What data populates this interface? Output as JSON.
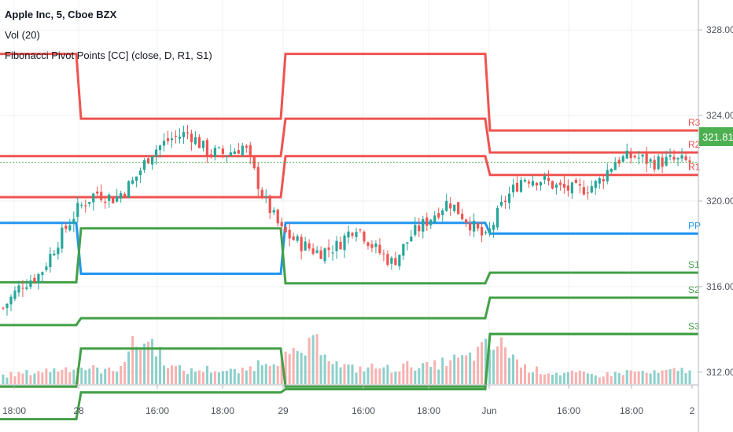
{
  "legend": {
    "symbol": "Apple Inc, 5, Cboe BZX",
    "volume": "Vol (20)",
    "indicator": "Fibonacci Pivot Points [CC] (close, D, R1, S1)"
  },
  "price_badge": "321.81",
  "colors": {
    "resistance": "#ef5350",
    "pivot": "#2196f3",
    "support": "#43a047",
    "candle_up": "#26a69a",
    "candle_down": "#ef5350",
    "badge": "#4caf50"
  },
  "chart_data": {
    "type": "candlestick",
    "y_ticks": [
      "328.00",
      "324.00",
      "320.00",
      "316.00",
      "312.00"
    ],
    "y_tick_values": [
      328,
      324,
      320,
      316,
      312
    ],
    "x_ticks": [
      "18:00",
      "28",
      "16:00",
      "18:00",
      "29",
      "16:00",
      "18:00",
      "Jun",
      "16:00",
      "18:00",
      "2"
    ],
    "ylim": [
      309.2,
      329.4
    ],
    "last_price": 321.81,
    "pivot_levels": [
      {
        "label": "R3",
        "values": [
          326.88,
          323.85,
          326.88,
          323.3
        ]
      },
      {
        "label": "R2",
        "values": [
          322.1,
          322.1,
          323.85,
          322.27
        ]
      },
      {
        "label": "R1",
        "values": [
          320.18,
          320.18,
          322.1,
          321.22
        ]
      },
      {
        "label": "PP",
        "values": [
          318.98,
          316.6,
          318.98,
          318.48
        ]
      },
      {
        "label": "S1",
        "values": [
          316.2,
          318.72,
          316.15,
          316.65
        ]
      },
      {
        "label": "S2",
        "values": [
          314.2,
          314.52,
          314.52,
          315.48
        ]
      },
      {
        "label": "S3",
        "values": [
          311.32,
          313.1,
          311.32,
          313.78
        ]
      },
      {
        "label": "",
        "values": [
          309.8,
          311.05,
          311.2,
          313.78
        ]
      }
    ],
    "close_path": [
      315.0,
      316.1,
      316.6,
      318.2,
      319.6,
      320.4,
      320.1,
      320.9,
      322.3,
      322.9,
      323.2,
      322.3,
      322.2,
      322.6,
      320.2,
      318.6,
      318.0,
      317.6,
      317.9,
      318.9,
      317.8,
      317.1,
      318.4,
      319.2,
      320.0,
      319.1,
      318.2,
      320.0,
      321.1,
      321.0,
      320.6,
      320.5,
      320.8,
      321.9,
      322.1,
      321.8,
      321.9,
      321.81
    ],
    "volume_profile": [
      0.2,
      0.25,
      0.3,
      0.35,
      0.4,
      0.35,
      0.3,
      0.9,
      1.0,
      0.4,
      0.3,
      0.35,
      0.3,
      0.3,
      0.55,
      0.6,
      0.7,
      1.0,
      0.45,
      0.35,
      0.4,
      0.35,
      0.45,
      0.4,
      0.55,
      0.6,
      0.85,
      0.9,
      0.4,
      0.3,
      0.25,
      0.25,
      0.2,
      0.25,
      0.3,
      0.25,
      0.3,
      0.35
    ]
  }
}
